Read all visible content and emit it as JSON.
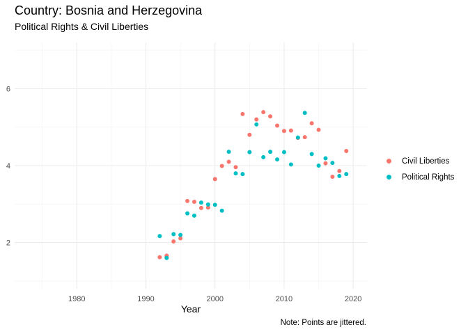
{
  "title": "Country: Bosnia and Herzegovina",
  "subtitle": "Political Rights & Civil Liberties",
  "caption": "Note: Points are jittered.",
  "chart_data": {
    "type": "scatter",
    "xlabel": "Year",
    "ylabel": "",
    "xlim": [
      1971,
      2022
    ],
    "ylim": [
      0.8,
      7.2
    ],
    "x_ticks": [
      1980,
      1990,
      2000,
      2010,
      2020
    ],
    "y_ticks": [
      2,
      4,
      6
    ],
    "grid": true,
    "legend_position": "right",
    "series": [
      {
        "name": "Civil Liberties",
        "color": "#F8766D",
        "points": [
          [
            1992,
            1.62
          ],
          [
            1993,
            1.66
          ],
          [
            1993,
            1.63
          ],
          [
            1994,
            2.03
          ],
          [
            1995,
            2.11
          ],
          [
            1996,
            3.08
          ],
          [
            1997,
            3.06
          ],
          [
            1998,
            2.9
          ],
          [
            1999,
            2.91
          ],
          [
            2000,
            3.65
          ],
          [
            2001,
            3.99
          ],
          [
            2002,
            4.1
          ],
          [
            2003,
            3.96
          ],
          [
            2004,
            5.34
          ],
          [
            2005,
            4.8
          ],
          [
            2006,
            5.2
          ],
          [
            2007,
            5.39
          ],
          [
            2008,
            5.28
          ],
          [
            2009,
            5.04
          ],
          [
            2010,
            4.9
          ],
          [
            2011,
            4.91
          ],
          [
            2012,
            4.72
          ],
          [
            2013,
            4.74
          ],
          [
            2014,
            5.1
          ],
          [
            2015,
            4.93
          ],
          [
            2016,
            4.06
          ],
          [
            2017,
            3.71
          ],
          [
            2018,
            3.86
          ],
          [
            2019,
            4.38
          ]
        ]
      },
      {
        "name": "Political Rights",
        "color": "#00BFC4",
        "points": [
          [
            1992,
            2.17
          ],
          [
            1993,
            1.6
          ],
          [
            1994,
            2.22
          ],
          [
            1995,
            2.2
          ],
          [
            1996,
            2.76
          ],
          [
            1997,
            2.7
          ],
          [
            1998,
            3.04
          ],
          [
            1999,
            2.99
          ],
          [
            2000,
            2.98
          ],
          [
            2001,
            2.83
          ],
          [
            2002,
            4.36
          ],
          [
            2003,
            3.8
          ],
          [
            2004,
            3.78
          ],
          [
            2005,
            4.35
          ],
          [
            2006,
            5.07
          ],
          [
            2007,
            4.22
          ],
          [
            2008,
            4.36
          ],
          [
            2009,
            4.16
          ],
          [
            2010,
            4.35
          ],
          [
            2011,
            4.03
          ],
          [
            2012,
            4.73
          ],
          [
            2013,
            5.37
          ],
          [
            2014,
            4.3
          ],
          [
            2015,
            4.0
          ],
          [
            2016,
            4.19
          ],
          [
            2017,
            4.07
          ],
          [
            2018,
            3.73
          ],
          [
            2019,
            3.78
          ]
        ]
      }
    ]
  }
}
